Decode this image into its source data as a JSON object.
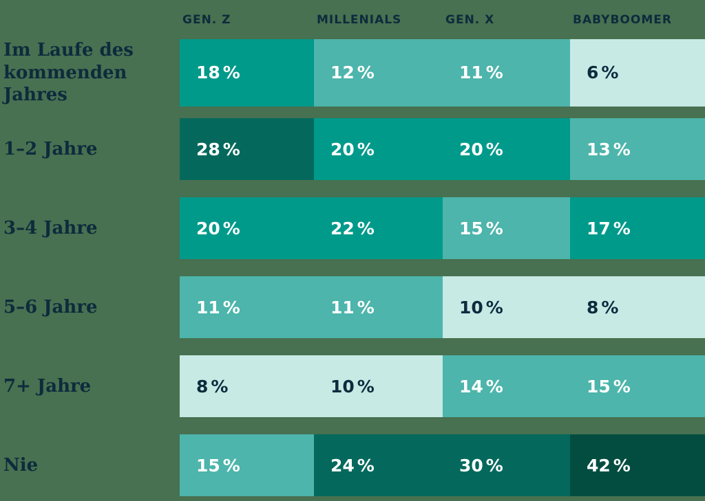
{
  "chart_data": {
    "type": "heatmap",
    "title": "",
    "unit": "%",
    "columns": [
      "GEN. Z",
      "MILLENIALS",
      "GEN. X",
      "BABYBOOMER"
    ],
    "row_labels": [
      "Im Laufe des kommenden Jahres",
      "1–2 Jahre",
      "3–4 Jahre",
      "5–6 Jahre",
      "7+ Jahre",
      "Nie"
    ],
    "values": [
      [
        18,
        12,
        11,
        6
      ],
      [
        28,
        20,
        20,
        13
      ],
      [
        20,
        22,
        15,
        17
      ],
      [
        11,
        11,
        10,
        8
      ],
      [
        8,
        10,
        14,
        15
      ],
      [
        15,
        24,
        30,
        42
      ]
    ],
    "layout": {
      "legend": "none",
      "grid": "off",
      "value_format": "percent"
    },
    "colors": {
      "page_background": "#477150",
      "label_text": "#0E2B3D",
      "value_text_on_dark": "#FFFFFF",
      "value_text_on_light": "#0E2B3D",
      "scale": [
        {
          "max": 10,
          "fill": "#C7EAE5",
          "text": "dark"
        },
        {
          "max": 16,
          "fill": "#4DB5AB",
          "text": "light"
        },
        {
          "max": 22,
          "fill": "#009A8B",
          "text": "light"
        },
        {
          "max": 30,
          "fill": "#04695C",
          "text": "light"
        },
        {
          "max": 100,
          "fill": "#024D40",
          "text": "light"
        }
      ]
    }
  }
}
